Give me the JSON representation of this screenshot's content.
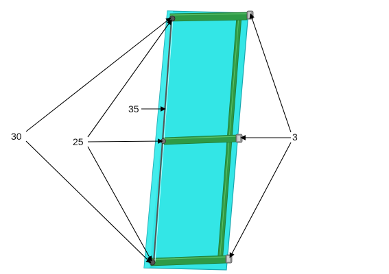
{
  "figure": {
    "labels": {
      "frame_ref": "30",
      "bolt_ref": "25",
      "rod_ref": "35",
      "bracket_ref": "3"
    }
  },
  "colors": {
    "panel_fill": "#33e6e6",
    "panel_edge": "#1aa7b0",
    "bar_green": "#2e9a46",
    "bar_dark": "#1f7a35",
    "bar_light": "#5cc26b",
    "bracket_gray": "#9a9a9a",
    "leader_black": "#000000"
  }
}
